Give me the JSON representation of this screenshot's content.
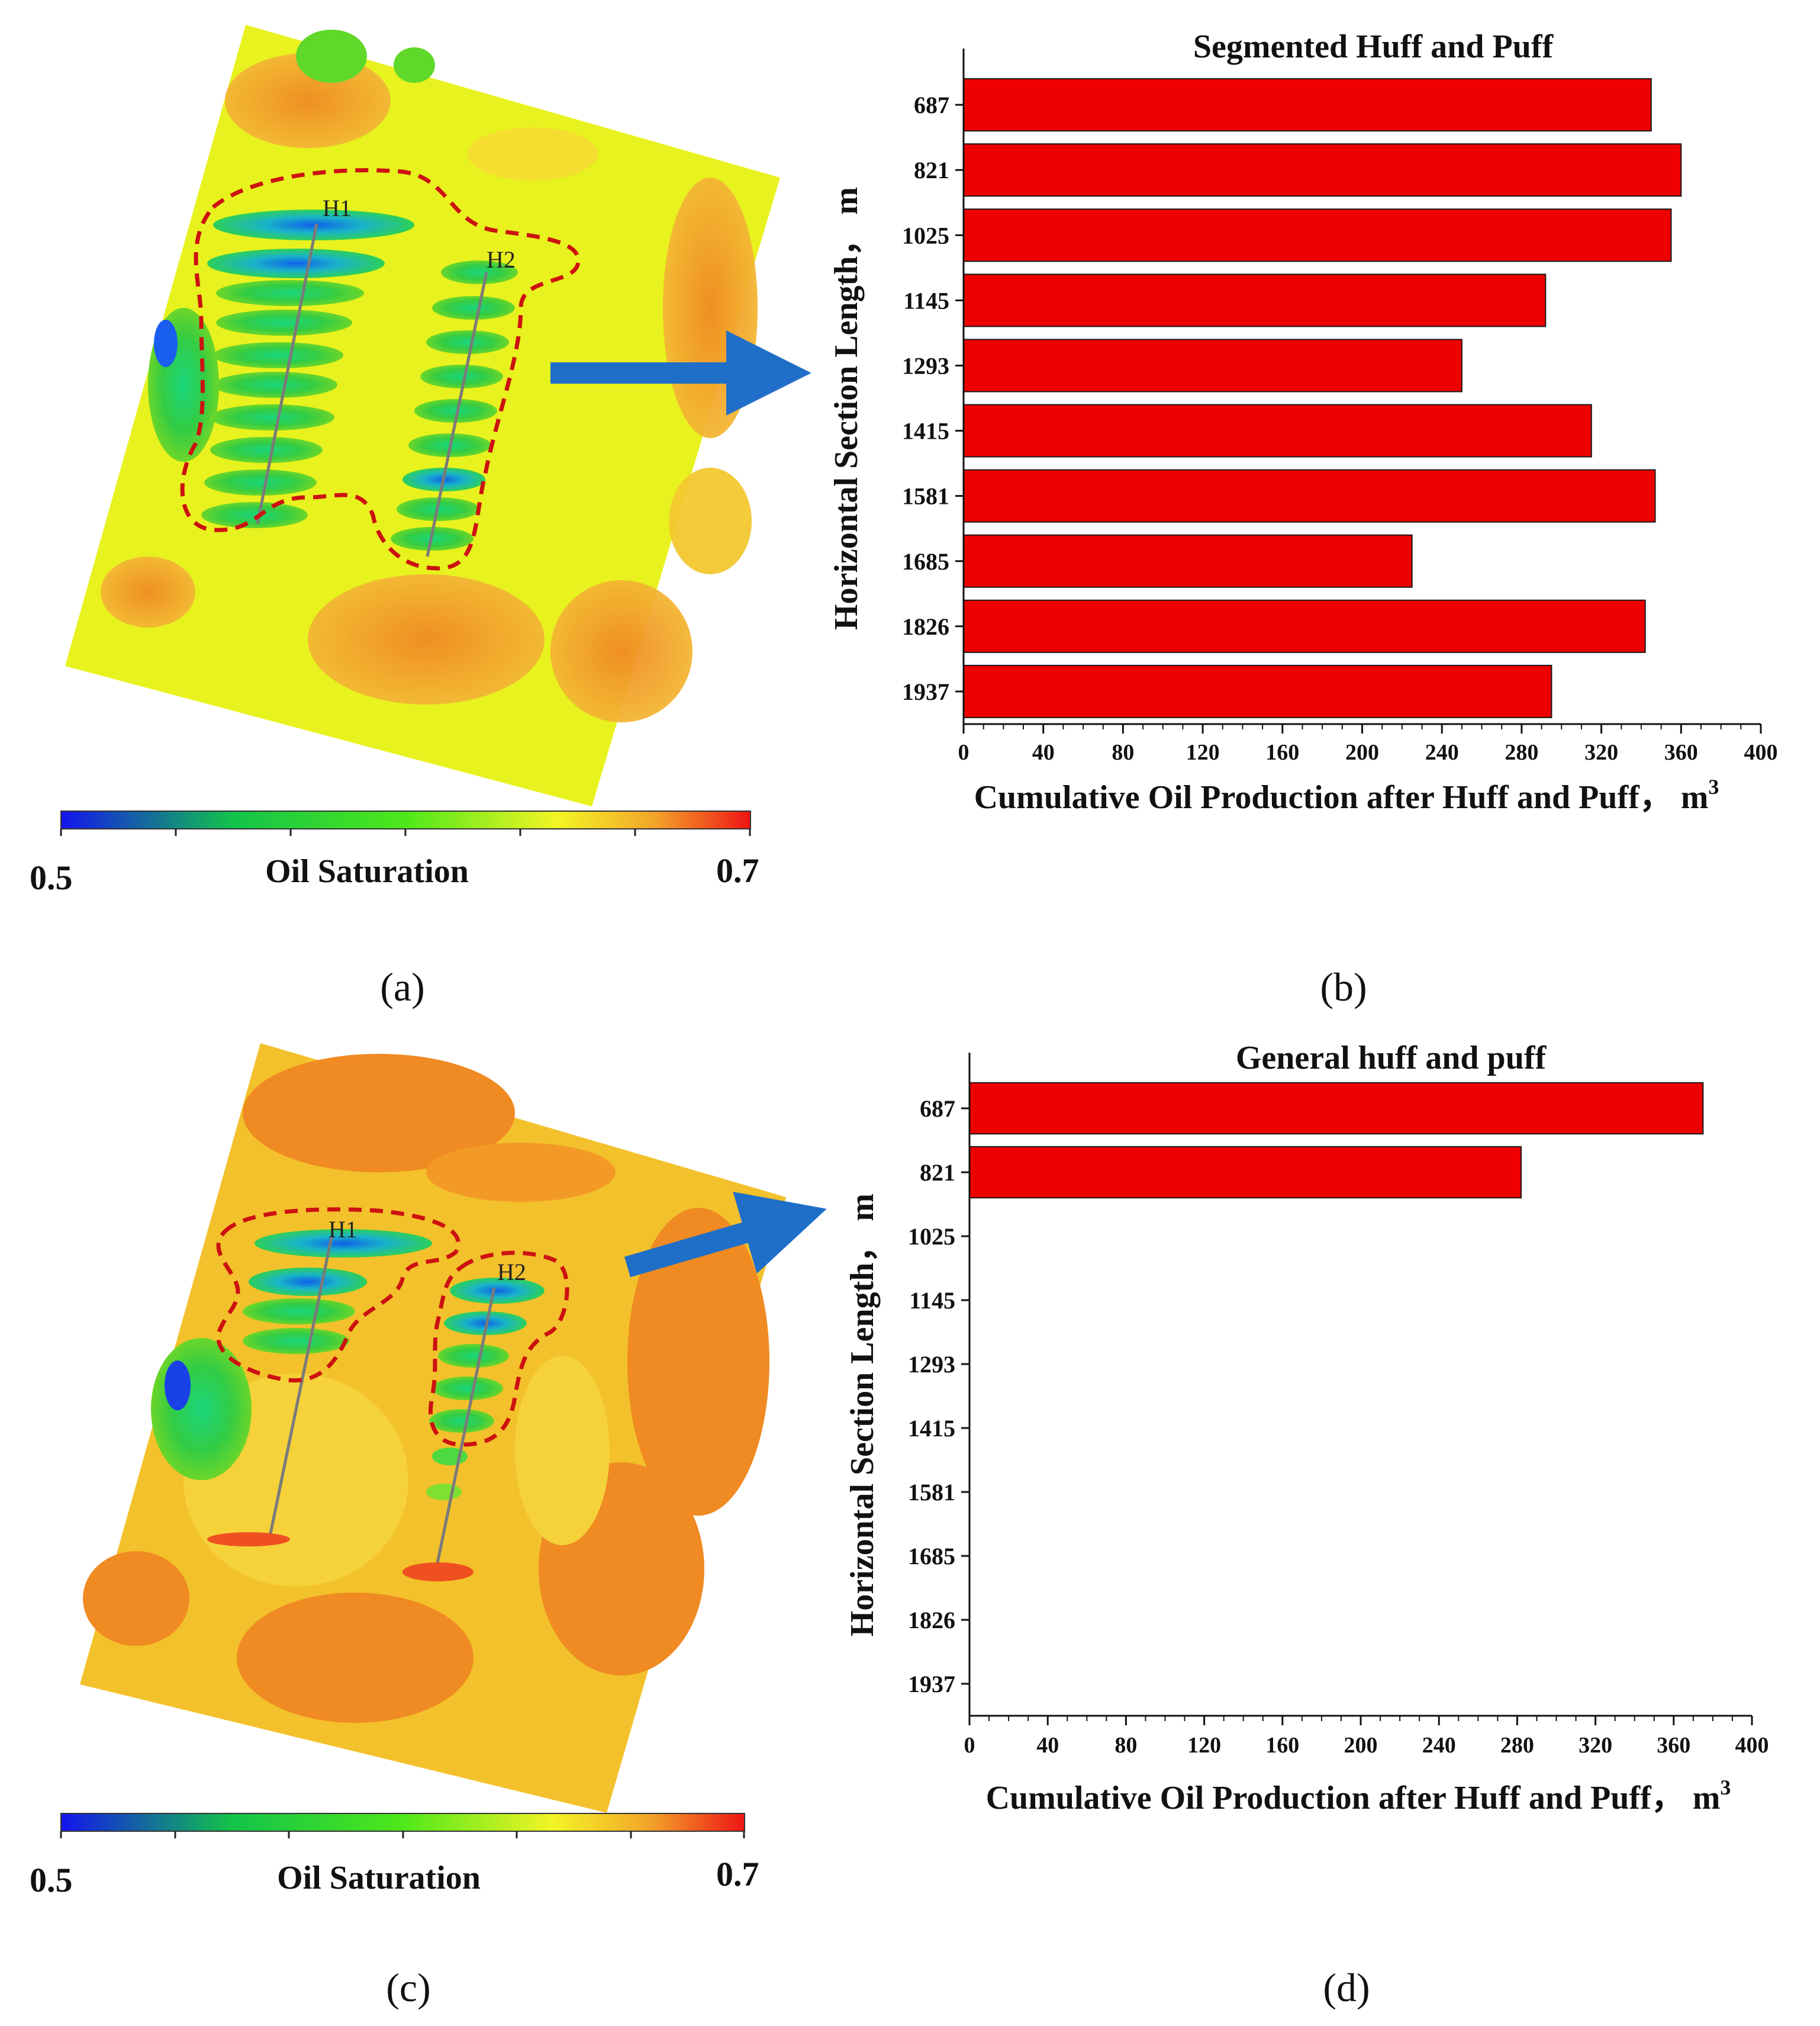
{
  "colors": {
    "bar_fill": "#ee0000",
    "bar_stroke": "#1a1a1a",
    "arrow": "#1f6fc9",
    "outline": "#cc1111",
    "field_yellow": "#e8f21e",
    "field_orange": "#f39a26",
    "well_line": "#7a7a7a"
  },
  "panels": {
    "a": {
      "label": "(a)",
      "well_labels": [
        "H1",
        "H2"
      ],
      "colorbar": {
        "min_label": "0.5",
        "max_label": "0.7",
        "title": "Oil Saturation"
      }
    },
    "b": {
      "label": "(b)"
    },
    "c": {
      "label": "(c)",
      "well_labels": [
        "H1",
        "H2"
      ],
      "colorbar": {
        "min_label": "0.5",
        "max_label": "0.7",
        "title": "Oil Saturation"
      }
    },
    "d": {
      "label": "(d)"
    }
  },
  "chart_data": [
    {
      "id": "b",
      "type": "bar",
      "orientation": "horizontal",
      "title": "Segmented Huff and Puff",
      "ylabel": "Horizontal Section Length， m",
      "xlabel": "Cumulative Oil Production after Huff and Puff， m",
      "xlabel_sup": "3",
      "categories": [
        "687",
        "821",
        "1025",
        "1145",
        "1293",
        "1415",
        "1581",
        "1685",
        "1826",
        "1937"
      ],
      "values": [
        345,
        360,
        355,
        292,
        250,
        315,
        347,
        225,
        342,
        295
      ],
      "xlim": [
        0,
        400
      ],
      "xticks": [
        "0",
        "40",
        "80",
        "120",
        "160",
        "200",
        "240",
        "280",
        "320",
        "360",
        "400"
      ]
    },
    {
      "id": "d",
      "type": "bar",
      "orientation": "horizontal",
      "title": "General huff and puff",
      "ylabel": "Horizontal Section Length， m",
      "xlabel": "Cumulative Oil Production after Huff and Puff， m",
      "xlabel_sup": "3",
      "categories": [
        "687",
        "821",
        "1025",
        "1145",
        "1293",
        "1415",
        "1581",
        "1685",
        "1826",
        "1937"
      ],
      "values": [
        375,
        282,
        null,
        null,
        null,
        null,
        null,
        null,
        null,
        null
      ],
      "xlim": [
        0,
        400
      ],
      "xticks": [
        "0",
        "40",
        "80",
        "120",
        "160",
        "200",
        "240",
        "280",
        "320",
        "360",
        "400"
      ]
    }
  ]
}
